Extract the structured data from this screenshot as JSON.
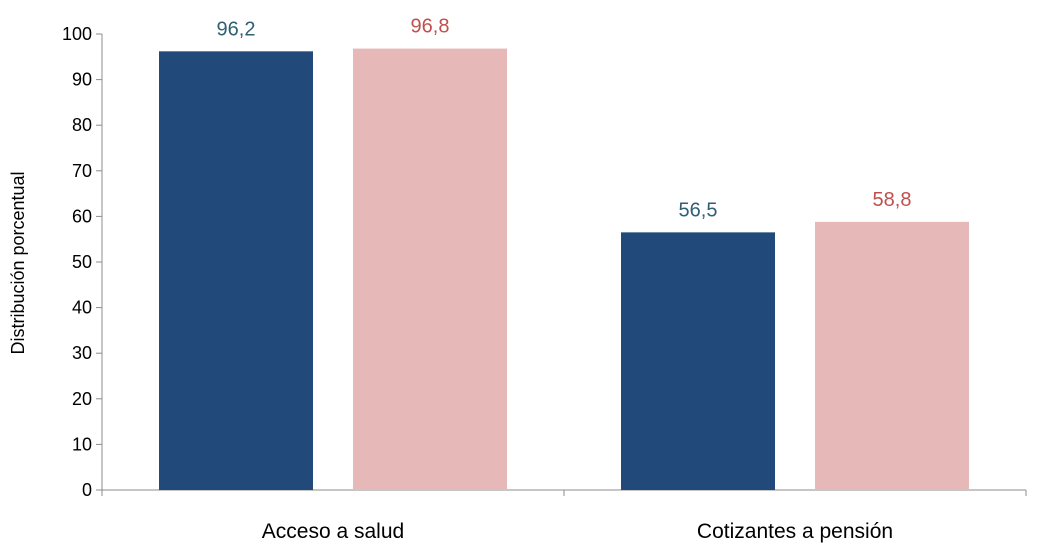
{
  "chart_data": {
    "type": "bar",
    "categories": [
      "Acceso a salud",
      "Cotizantes a pensión"
    ],
    "series": [
      {
        "values": [
          96.2,
          56.5
        ],
        "labels": [
          "96,2",
          "56,5"
        ],
        "color": "#214a7b",
        "label_color": "#2f5f74"
      },
      {
        "values": [
          96.8,
          58.8
        ],
        "labels": [
          "96,8",
          "58,8"
        ],
        "color": "#e6b8b7",
        "label_color": "#c0504d"
      }
    ],
    "title": "",
    "xlabel": "",
    "ylabel": "Distribución porcentual",
    "ylim": [
      0,
      100
    ],
    "yticks": [
      0,
      10,
      20,
      30,
      40,
      50,
      60,
      70,
      80,
      90,
      100
    ],
    "grid": false,
    "legend": "none"
  }
}
